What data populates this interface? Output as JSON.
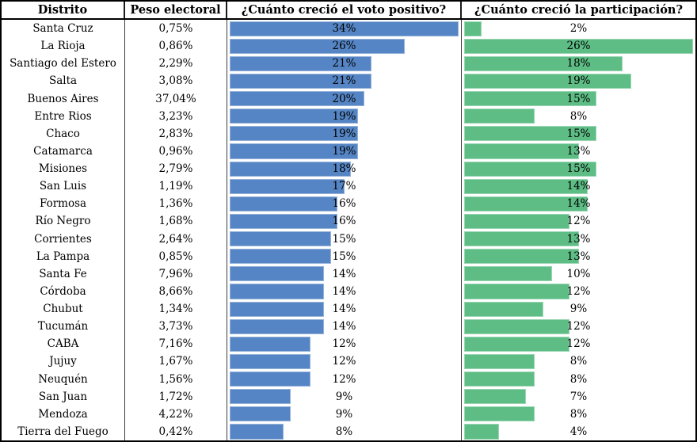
{
  "table": {
    "headers": [
      "Distrito",
      "Peso electoral",
      "¿Cuánto creció el voto positivo?",
      "¿Cuánto creció la participación?"
    ]
  },
  "colors": {
    "voto_bar": "#5585c4",
    "participacion_bar": "#5dbd85",
    "text": "#000000",
    "border": "#000000"
  },
  "rows": [
    {
      "district": "Santa Cruz",
      "peso": "0,75%",
      "voto_label": "34%",
      "voto_value": 34,
      "participacion_label": "2%",
      "participacion_value": 2
    },
    {
      "district": "La Rioja",
      "peso": "0,86%",
      "voto_label": "26%",
      "voto_value": 26,
      "participacion_label": "26%",
      "participacion_value": 26
    },
    {
      "district": "Santiago del Estero",
      "peso": "2,29%",
      "voto_label": "21%",
      "voto_value": 21,
      "participacion_label": "18%",
      "participacion_value": 18
    },
    {
      "district": "Salta",
      "peso": "3,08%",
      "voto_label": "21%",
      "voto_value": 21,
      "participacion_label": "19%",
      "participacion_value": 19
    },
    {
      "district": "Buenos Aires",
      "peso": "37,04%",
      "voto_label": "20%",
      "voto_value": 20,
      "participacion_label": "15%",
      "participacion_value": 15
    },
    {
      "district": "Entre Rios",
      "peso": "3,23%",
      "voto_label": "19%",
      "voto_value": 19,
      "participacion_label": "8%",
      "participacion_value": 8
    },
    {
      "district": "Chaco",
      "peso": "2,83%",
      "voto_label": "19%",
      "voto_value": 19,
      "participacion_label": "15%",
      "participacion_value": 15
    },
    {
      "district": "Catamarca",
      "peso": "0,96%",
      "voto_label": "19%",
      "voto_value": 19,
      "participacion_label": "13%",
      "participacion_value": 13
    },
    {
      "district": "Misiones",
      "peso": "2,79%",
      "voto_label": "18%",
      "voto_value": 18,
      "participacion_label": "15%",
      "participacion_value": 15
    },
    {
      "district": "San Luis",
      "peso": "1,19%",
      "voto_label": "17%",
      "voto_value": 17,
      "participacion_label": "14%",
      "participacion_value": 14
    },
    {
      "district": "Formosa",
      "peso": "1,36%",
      "voto_label": "16%",
      "voto_value": 16,
      "participacion_label": "14%",
      "participacion_value": 14
    },
    {
      "district": "Río Negro",
      "peso": "1,68%",
      "voto_label": "16%",
      "voto_value": 16,
      "participacion_label": "12%",
      "participacion_value": 12
    },
    {
      "district": "Corrientes",
      "peso": "2,64%",
      "voto_label": "15%",
      "voto_value": 15,
      "participacion_label": "13%",
      "participacion_value": 13
    },
    {
      "district": "La Pampa",
      "peso": "0,85%",
      "voto_label": "15%",
      "voto_value": 15,
      "participacion_label": "13%",
      "participacion_value": 13
    },
    {
      "district": "Santa Fe",
      "peso": "7,96%",
      "voto_label": "14%",
      "voto_value": 14,
      "participacion_label": "10%",
      "participacion_value": 10
    },
    {
      "district": "Córdoba",
      "peso": "8,66%",
      "voto_label": "14%",
      "voto_value": 14,
      "participacion_label": "12%",
      "participacion_value": 12
    },
    {
      "district": "Chubut",
      "peso": "1,34%",
      "voto_label": "14%",
      "voto_value": 14,
      "participacion_label": "9%",
      "participacion_value": 9
    },
    {
      "district": "Tucumán",
      "peso": "3,73%",
      "voto_label": "14%",
      "voto_value": 14,
      "participacion_label": "12%",
      "participacion_value": 12
    },
    {
      "district": "CABA",
      "peso": "7,16%",
      "voto_label": "12%",
      "voto_value": 12,
      "participacion_label": "12%",
      "participacion_value": 12
    },
    {
      "district": "Jujuy",
      "peso": "1,67%",
      "voto_label": "12%",
      "voto_value": 12,
      "participacion_label": "8%",
      "participacion_value": 8
    },
    {
      "district": "Neuquén",
      "peso": "1,56%",
      "voto_label": "12%",
      "voto_value": 12,
      "participacion_label": "8%",
      "participacion_value": 8
    },
    {
      "district": "San Juan",
      "peso": "1,72%",
      "voto_label": "9%",
      "voto_value": 9,
      "participacion_label": "7%",
      "participacion_value": 7
    },
    {
      "district": "Mendoza",
      "peso": "4,22%",
      "voto_label": "9%",
      "voto_value": 9,
      "participacion_label": "8%",
      "participacion_value": 8
    },
    {
      "district": "Tierra del Fuego",
      "peso": "0,42%",
      "voto_label": "8%",
      "voto_value": 8,
      "participacion_label": "4%",
      "participacion_value": 4
    }
  ],
  "chart_data": {
    "type": "bar",
    "orientation": "horizontal",
    "title": "",
    "categories": [
      "Santa Cruz",
      "La Rioja",
      "Santiago del Estero",
      "Salta",
      "Buenos Aires",
      "Entre Rios",
      "Chaco",
      "Catamarca",
      "Misiones",
      "San Luis",
      "Formosa",
      "Río Negro",
      "Corrientes",
      "La Pampa",
      "Santa Fe",
      "Córdoba",
      "Chubut",
      "Tucumán",
      "CABA",
      "Jujuy",
      "Neuquén",
      "San Juan",
      "Mendoza",
      "Tierra del Fuego"
    ],
    "series": [
      {
        "name": "Peso electoral",
        "unit": "%",
        "values": [
          0.75,
          0.86,
          2.29,
          3.08,
          37.04,
          3.23,
          2.83,
          0.96,
          2.79,
          1.19,
          1.36,
          1.68,
          2.64,
          0.85,
          7.96,
          8.66,
          1.34,
          3.73,
          7.16,
          1.67,
          1.56,
          1.72,
          4.22,
          0.42
        ]
      },
      {
        "name": "¿Cuánto creció el voto positivo?",
        "unit": "%",
        "color": "#5585c4",
        "axis_max": 34,
        "values": [
          34,
          26,
          21,
          21,
          20,
          19,
          19,
          19,
          18,
          17,
          16,
          16,
          15,
          15,
          14,
          14,
          14,
          14,
          12,
          12,
          12,
          9,
          9,
          8
        ]
      },
      {
        "name": "¿Cuánto creció la participación?",
        "unit": "%",
        "color": "#5dbd85",
        "axis_max": 26,
        "values": [
          2,
          26,
          18,
          19,
          15,
          8,
          15,
          13,
          15,
          14,
          14,
          12,
          13,
          13,
          10,
          12,
          9,
          12,
          12,
          8,
          8,
          7,
          8,
          4
        ]
      }
    ],
    "legend": "none",
    "grid": false,
    "data_labels": "centered-in-column",
    "sorted_by": "voto positivo descending"
  }
}
